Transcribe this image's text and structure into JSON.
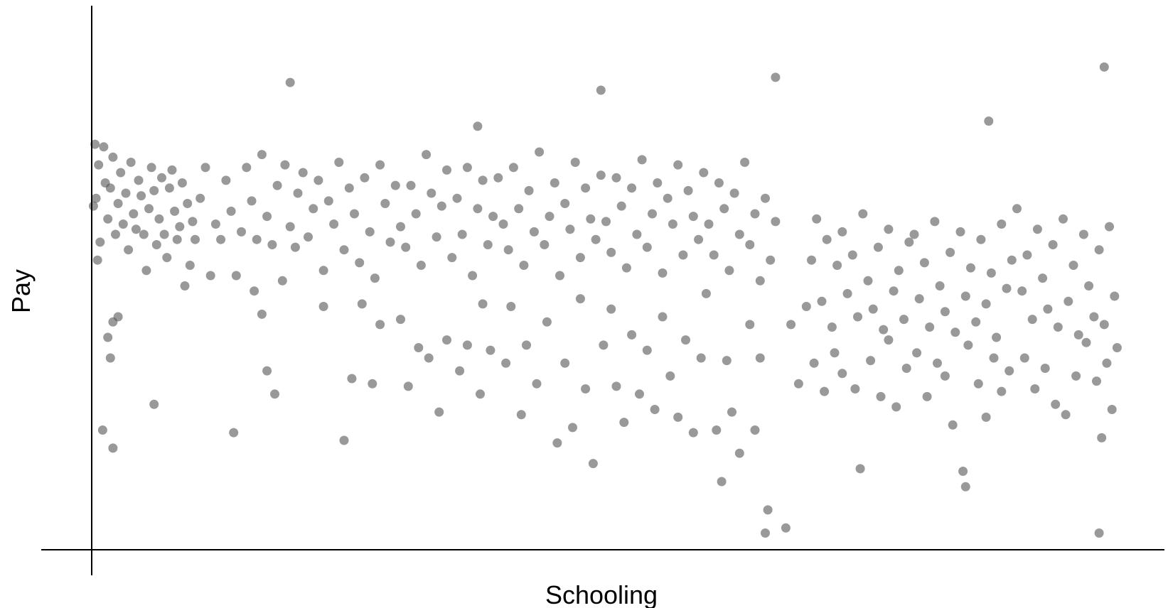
{
  "chart_data": {
    "type": "scatter",
    "xlabel": "Schooling",
    "ylabel": "Pay",
    "xlim": [
      0,
      20
    ],
    "ylim": [
      0,
      10
    ],
    "grid": false,
    "colors": {
      "point": "#555555",
      "axis": "#000000"
    },
    "series": [
      {
        "points": [
          [
            0.02,
            6.55
          ],
          [
            0.05,
            7.75
          ],
          [
            0.07,
            6.7
          ],
          [
            0.12,
            7.35
          ],
          [
            0.1,
            5.5
          ],
          [
            0.15,
            5.85
          ],
          [
            0.22,
            7.7
          ],
          [
            0.25,
            7.0
          ],
          [
            0.3,
            6.3
          ],
          [
            0.35,
            6.9
          ],
          [
            0.4,
            7.5
          ],
          [
            0.45,
            6.0
          ],
          [
            0.5,
            6.6
          ],
          [
            0.55,
            7.2
          ],
          [
            0.6,
            6.2
          ],
          [
            0.65,
            6.8
          ],
          [
            0.7,
            5.7
          ],
          [
            0.75,
            7.4
          ],
          [
            0.8,
            6.4
          ],
          [
            0.85,
            6.1
          ],
          [
            0.9,
            7.05
          ],
          [
            0.95,
            6.75
          ],
          [
            1.0,
            6.0
          ],
          [
            1.05,
            5.3
          ],
          [
            1.1,
            6.5
          ],
          [
            1.15,
            7.3
          ],
          [
            1.2,
            6.85
          ],
          [
            1.25,
            5.8
          ],
          [
            1.3,
            6.3
          ],
          [
            1.35,
            7.1
          ],
          [
            1.4,
            6.0
          ],
          [
            1.45,
            5.55
          ],
          [
            1.5,
            6.9
          ],
          [
            1.55,
            7.25
          ],
          [
            1.6,
            6.45
          ],
          [
            1.65,
            5.9
          ],
          [
            1.7,
            6.15
          ],
          [
            1.75,
            7.0
          ],
          [
            1.8,
            5.0
          ],
          [
            1.85,
            6.6
          ],
          [
            1.9,
            5.4
          ],
          [
            1.95,
            6.25
          ],
          [
            0.4,
            4.3
          ],
          [
            0.35,
            3.6
          ],
          [
            0.5,
            4.4
          ],
          [
            0.4,
            1.85
          ],
          [
            1.2,
            2.7
          ],
          [
            0.2,
            2.2
          ],
          [
            0.3,
            4.0
          ],
          [
            2.0,
            5.9
          ],
          [
            2.1,
            6.7
          ],
          [
            2.2,
            7.3
          ],
          [
            2.3,
            5.2
          ],
          [
            2.4,
            6.2
          ],
          [
            2.5,
            5.9
          ],
          [
            2.6,
            7.05
          ],
          [
            2.7,
            6.45
          ],
          [
            2.8,
            5.2
          ],
          [
            2.9,
            6.05
          ],
          [
            3.0,
            7.3
          ],
          [
            3.1,
            6.65
          ],
          [
            3.2,
            5.9
          ],
          [
            3.3,
            7.55
          ],
          [
            3.4,
            6.35
          ],
          [
            3.5,
            5.8
          ],
          [
            3.6,
            6.95
          ],
          [
            3.7,
            5.1
          ],
          [
            3.75,
            7.35
          ],
          [
            3.85,
            6.15
          ],
          [
            3.95,
            5.75
          ],
          [
            3.3,
            4.45
          ],
          [
            3.4,
            3.35
          ],
          [
            3.55,
            2.9
          ],
          [
            3.85,
            8.95
          ],
          [
            2.75,
            2.15
          ],
          [
            3.15,
            4.9
          ],
          [
            4.0,
            6.8
          ],
          [
            4.1,
            7.2
          ],
          [
            4.2,
            5.95
          ],
          [
            4.3,
            6.5
          ],
          [
            4.4,
            7.05
          ],
          [
            4.5,
            5.3
          ],
          [
            4.6,
            6.65
          ],
          [
            4.7,
            6.2
          ],
          [
            4.8,
            7.4
          ],
          [
            4.9,
            5.7
          ],
          [
            5.0,
            6.9
          ],
          [
            5.1,
            6.4
          ],
          [
            5.2,
            5.45
          ],
          [
            5.3,
            7.1
          ],
          [
            5.4,
            6.05
          ],
          [
            5.5,
            5.15
          ],
          [
            5.6,
            7.35
          ],
          [
            5.7,
            6.6
          ],
          [
            5.8,
            5.85
          ],
          [
            5.9,
            6.95
          ],
          [
            4.5,
            4.6
          ],
          [
            4.9,
            2.0
          ],
          [
            5.05,
            3.2
          ],
          [
            5.25,
            4.65
          ],
          [
            5.45,
            3.1
          ],
          [
            5.6,
            4.25
          ],
          [
            6.0,
            6.15
          ],
          [
            6.1,
            5.75
          ],
          [
            6.2,
            6.95
          ],
          [
            6.3,
            6.4
          ],
          [
            6.4,
            5.4
          ],
          [
            6.5,
            7.55
          ],
          [
            6.6,
            6.8
          ],
          [
            6.7,
            5.95
          ],
          [
            6.8,
            6.55
          ],
          [
            6.9,
            7.25
          ],
          [
            7.0,
            5.55
          ],
          [
            7.1,
            6.7
          ],
          [
            7.2,
            6.0
          ],
          [
            7.3,
            7.3
          ],
          [
            7.4,
            5.2
          ],
          [
            7.5,
            6.5
          ],
          [
            7.6,
            7.05
          ],
          [
            7.7,
            5.8
          ],
          [
            7.8,
            6.35
          ],
          [
            7.9,
            7.1
          ],
          [
            6.0,
            4.35
          ],
          [
            6.15,
            3.05
          ],
          [
            6.35,
            3.8
          ],
          [
            6.55,
            3.6
          ],
          [
            6.75,
            2.55
          ],
          [
            6.9,
            3.95
          ],
          [
            7.15,
            3.35
          ],
          [
            7.3,
            3.85
          ],
          [
            7.55,
            2.9
          ],
          [
            7.6,
            4.65
          ],
          [
            7.75,
            3.75
          ],
          [
            7.5,
            8.1
          ],
          [
            8.0,
            6.2
          ],
          [
            8.1,
            5.7
          ],
          [
            8.2,
            7.3
          ],
          [
            8.3,
            6.5
          ],
          [
            8.4,
            5.4
          ],
          [
            8.5,
            6.85
          ],
          [
            8.6,
            6.05
          ],
          [
            8.7,
            7.6
          ],
          [
            8.8,
            5.8
          ],
          [
            8.9,
            6.35
          ],
          [
            9.0,
            7.0
          ],
          [
            9.1,
            5.2
          ],
          [
            9.2,
            6.6
          ],
          [
            9.3,
            6.1
          ],
          [
            9.4,
            7.4
          ],
          [
            9.5,
            5.55
          ],
          [
            9.6,
            6.9
          ],
          [
            9.7,
            6.3
          ],
          [
            9.8,
            5.9
          ],
          [
            9.9,
            7.15
          ],
          [
            8.05,
            3.5
          ],
          [
            8.15,
            4.6
          ],
          [
            8.35,
            2.5
          ],
          [
            8.45,
            3.85
          ],
          [
            8.65,
            3.1
          ],
          [
            8.85,
            4.3
          ],
          [
            9.05,
            1.95
          ],
          [
            9.2,
            3.5
          ],
          [
            9.35,
            2.25
          ],
          [
            9.5,
            4.75
          ],
          [
            9.6,
            3.0
          ],
          [
            9.75,
            1.55
          ],
          [
            9.9,
            8.8
          ],
          [
            9.95,
            3.85
          ],
          [
            10.0,
            6.25
          ],
          [
            10.1,
            5.65
          ],
          [
            10.2,
            7.1
          ],
          [
            10.3,
            6.55
          ],
          [
            10.4,
            5.35
          ],
          [
            10.5,
            6.9
          ],
          [
            10.6,
            6.0
          ],
          [
            10.7,
            7.45
          ],
          [
            10.8,
            5.75
          ],
          [
            10.9,
            6.4
          ],
          [
            11.0,
            7.0
          ],
          [
            11.1,
            5.25
          ],
          [
            11.2,
            6.7
          ],
          [
            11.3,
            6.2
          ],
          [
            11.4,
            7.35
          ],
          [
            11.5,
            5.6
          ],
          [
            11.6,
            6.85
          ],
          [
            11.7,
            6.35
          ],
          [
            11.8,
            5.9
          ],
          [
            11.9,
            7.2
          ],
          [
            10.1,
            4.55
          ],
          [
            10.2,
            3.05
          ],
          [
            10.35,
            2.35
          ],
          [
            10.5,
            4.05
          ],
          [
            10.65,
            2.9
          ],
          [
            10.8,
            3.75
          ],
          [
            10.95,
            2.6
          ],
          [
            11.1,
            4.4
          ],
          [
            11.25,
            3.25
          ],
          [
            11.4,
            2.45
          ],
          [
            11.55,
            3.95
          ],
          [
            11.7,
            2.15
          ],
          [
            11.85,
            3.6
          ],
          [
            11.95,
            4.85
          ],
          [
            12.0,
            6.2
          ],
          [
            12.1,
            5.6
          ],
          [
            12.2,
            7.0
          ],
          [
            12.3,
            6.5
          ],
          [
            12.4,
            5.3
          ],
          [
            12.5,
            6.8
          ],
          [
            12.6,
            6.0
          ],
          [
            12.7,
            7.4
          ],
          [
            12.8,
            5.8
          ],
          [
            12.9,
            6.4
          ],
          [
            13.0,
            5.1
          ],
          [
            13.1,
            6.7
          ],
          [
            13.2,
            5.5
          ],
          [
            13.3,
            6.25
          ],
          [
            12.15,
            2.2
          ],
          [
            12.25,
            1.2
          ],
          [
            12.35,
            3.55
          ],
          [
            12.45,
            2.55
          ],
          [
            12.6,
            1.75
          ],
          [
            12.8,
            4.25
          ],
          [
            12.9,
            2.2
          ],
          [
            13.0,
            3.6
          ],
          [
            13.1,
            0.2
          ],
          [
            13.15,
            0.65
          ],
          [
            13.3,
            9.05
          ],
          [
            13.5,
            0.3
          ],
          [
            13.6,
            4.25
          ],
          [
            13.75,
            3.1
          ],
          [
            13.9,
            4.6
          ],
          [
            14.0,
            5.5
          ],
          [
            14.1,
            6.3
          ],
          [
            14.2,
            4.7
          ],
          [
            14.3,
            5.9
          ],
          [
            14.4,
            4.2
          ],
          [
            14.5,
            5.4
          ],
          [
            14.6,
            6.05
          ],
          [
            14.7,
            4.85
          ],
          [
            14.8,
            5.6
          ],
          [
            14.9,
            4.4
          ],
          [
            15.0,
            6.4
          ],
          [
            15.1,
            5.1
          ],
          [
            15.2,
            4.55
          ],
          [
            15.3,
            5.75
          ],
          [
            15.4,
            4.15
          ],
          [
            15.5,
            6.1
          ],
          [
            15.6,
            4.9
          ],
          [
            15.7,
            5.3
          ],
          [
            15.8,
            4.35
          ],
          [
            15.9,
            5.85
          ],
          [
            14.05,
            3.5
          ],
          [
            14.25,
            2.95
          ],
          [
            14.45,
            3.7
          ],
          [
            14.6,
            3.3
          ],
          [
            14.85,
            3.0
          ],
          [
            14.95,
            1.45
          ],
          [
            15.15,
            3.55
          ],
          [
            15.35,
            2.85
          ],
          [
            15.5,
            3.95
          ],
          [
            15.65,
            2.65
          ],
          [
            15.85,
            3.4
          ],
          [
            16.0,
            6.0
          ],
          [
            16.1,
            4.75
          ],
          [
            16.2,
            5.45
          ],
          [
            16.3,
            4.2
          ],
          [
            16.4,
            6.25
          ],
          [
            16.5,
            5.0
          ],
          [
            16.6,
            4.5
          ],
          [
            16.7,
            5.65
          ],
          [
            16.8,
            4.1
          ],
          [
            16.9,
            6.05
          ],
          [
            17.0,
            4.8
          ],
          [
            17.1,
            5.35
          ],
          [
            17.2,
            4.3
          ],
          [
            17.3,
            5.9
          ],
          [
            17.4,
            4.65
          ],
          [
            17.5,
            5.25
          ],
          [
            17.6,
            4.0
          ],
          [
            17.7,
            6.2
          ],
          [
            17.8,
            4.95
          ],
          [
            17.9,
            5.5
          ],
          [
            16.05,
            3.7
          ],
          [
            16.25,
            2.85
          ],
          [
            16.45,
            3.5
          ],
          [
            16.6,
            3.25
          ],
          [
            16.75,
            2.3
          ],
          [
            16.95,
            1.4
          ],
          [
            17.05,
            3.85
          ],
          [
            17.25,
            3.1
          ],
          [
            17.4,
            2.45
          ],
          [
            17.55,
            3.6
          ],
          [
            17.7,
            2.95
          ],
          [
            17.85,
            3.35
          ],
          [
            17.0,
            1.1
          ],
          [
            17.45,
            8.2
          ],
          [
            18.0,
            6.5
          ],
          [
            18.1,
            4.9
          ],
          [
            18.2,
            5.6
          ],
          [
            18.3,
            4.35
          ],
          [
            18.4,
            6.1
          ],
          [
            18.5,
            5.15
          ],
          [
            18.6,
            4.55
          ],
          [
            18.7,
            5.8
          ],
          [
            18.8,
            4.2
          ],
          [
            18.9,
            6.3
          ],
          [
            19.0,
            4.7
          ],
          [
            19.1,
            5.4
          ],
          [
            19.2,
            4.05
          ],
          [
            19.3,
            6.0
          ],
          [
            19.4,
            5.0
          ],
          [
            19.5,
            4.4
          ],
          [
            19.6,
            5.7
          ],
          [
            19.7,
            4.25
          ],
          [
            19.8,
            6.15
          ],
          [
            19.9,
            4.8
          ],
          [
            18.15,
            3.6
          ],
          [
            18.35,
            3.0
          ],
          [
            18.55,
            3.4
          ],
          [
            18.75,
            2.7
          ],
          [
            18.95,
            2.5
          ],
          [
            19.15,
            3.25
          ],
          [
            19.35,
            3.9
          ],
          [
            19.55,
            3.15
          ],
          [
            19.65,
            2.05
          ],
          [
            19.75,
            3.5
          ],
          [
            19.85,
            2.6
          ],
          [
            19.6,
            0.2
          ],
          [
            19.7,
            9.25
          ],
          [
            19.95,
            3.8
          ]
        ]
      }
    ]
  }
}
